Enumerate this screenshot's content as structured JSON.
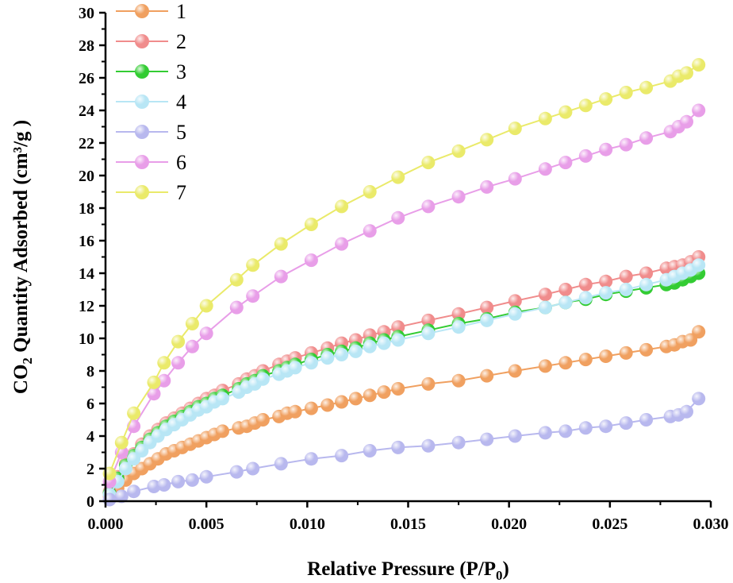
{
  "chart_data": {
    "type": "scatter",
    "title": "",
    "xlabel": "Relative Pressure (P/P",
    "xlabel_sub": "0",
    "xlabel_end": ")",
    "ylabel_pre": "CO",
    "ylabel_sub": "2",
    "ylabel_post": " Quantity Adsorbed (cm³/g )",
    "xlim": [
      0,
      0.03
    ],
    "ylim": [
      0,
      30
    ],
    "xticks": [
      0.0,
      0.005,
      0.01,
      0.015,
      0.02,
      0.025,
      0.03
    ],
    "xtick_labels": [
      "0.000",
      "0.005",
      "0.010",
      "0.015",
      "0.020",
      "0.025",
      "0.030"
    ],
    "yticks": [
      0,
      2,
      4,
      6,
      8,
      10,
      12,
      14,
      16,
      18,
      20,
      22,
      24,
      26,
      28,
      30
    ],
    "ytick_labels": [
      "0",
      "2",
      "4",
      "6",
      "8",
      "10",
      "12",
      "14",
      "16",
      "18",
      "20",
      "22",
      "24",
      "26",
      "28",
      "30"
    ],
    "legend_position": "top-left",
    "grid": false,
    "series": [
      {
        "name": "1",
        "color": "#f0a060",
        "x": [
          0.0002,
          0.0006,
          0.001,
          0.0014,
          0.0018,
          0.0022,
          0.0026,
          0.003,
          0.0034,
          0.0038,
          0.0042,
          0.0046,
          0.005,
          0.0054,
          0.0058,
          0.0066,
          0.007,
          0.0074,
          0.0078,
          0.0086,
          0.009,
          0.0094,
          0.0102,
          0.011,
          0.0117,
          0.0124,
          0.0131,
          0.0138,
          0.0145,
          0.016,
          0.0175,
          0.0189,
          0.0203,
          0.0218,
          0.0228,
          0.0238,
          0.0248,
          0.0258,
          0.0268,
          0.0278,
          0.0282,
          0.0286,
          0.029,
          0.0294
        ],
        "y": [
          0.3,
          0.8,
          1.3,
          1.7,
          2.0,
          2.3,
          2.6,
          2.9,
          3.1,
          3.3,
          3.5,
          3.7,
          3.9,
          4.1,
          4.3,
          4.5,
          4.6,
          4.8,
          5.0,
          5.2,
          5.4,
          5.5,
          5.7,
          5.9,
          6.1,
          6.3,
          6.5,
          6.7,
          6.9,
          7.2,
          7.4,
          7.7,
          8.0,
          8.3,
          8.5,
          8.7,
          8.9,
          9.1,
          9.3,
          9.5,
          9.6,
          9.8,
          9.9,
          10.4
        ]
      },
      {
        "name": "2",
        "color": "#f08c8c",
        "x": [
          0.0002,
          0.0006,
          0.001,
          0.0014,
          0.0018,
          0.0022,
          0.0026,
          0.003,
          0.0034,
          0.0038,
          0.0042,
          0.0046,
          0.005,
          0.0054,
          0.0058,
          0.0066,
          0.007,
          0.0074,
          0.0078,
          0.0086,
          0.009,
          0.0094,
          0.0102,
          0.011,
          0.0117,
          0.0124,
          0.0131,
          0.0138,
          0.0145,
          0.016,
          0.0175,
          0.0189,
          0.0203,
          0.0218,
          0.0228,
          0.0238,
          0.0248,
          0.0258,
          0.0268,
          0.0278,
          0.0282,
          0.0286,
          0.029,
          0.0294
        ],
        "y": [
          0.6,
          1.5,
          2.3,
          2.9,
          3.5,
          4.0,
          4.4,
          4.8,
          5.1,
          5.4,
          5.7,
          6.0,
          6.3,
          6.5,
          6.8,
          7.2,
          7.5,
          7.7,
          8.0,
          8.4,
          8.6,
          8.8,
          9.1,
          9.4,
          9.7,
          9.9,
          10.2,
          10.4,
          10.7,
          11.1,
          11.5,
          11.9,
          12.3,
          12.7,
          13.0,
          13.3,
          13.5,
          13.8,
          14.0,
          14.3,
          14.4,
          14.5,
          14.7,
          15.0
        ]
      },
      {
        "name": "3",
        "color": "#33cc33",
        "x": [
          0.0002,
          0.0006,
          0.001,
          0.0014,
          0.0018,
          0.0022,
          0.0026,
          0.003,
          0.0034,
          0.0038,
          0.0042,
          0.0046,
          0.005,
          0.0054,
          0.0058,
          0.0066,
          0.007,
          0.0074,
          0.0078,
          0.0086,
          0.009,
          0.0094,
          0.0102,
          0.011,
          0.0117,
          0.0124,
          0.0131,
          0.0138,
          0.0145,
          0.016,
          0.0175,
          0.0189,
          0.0203,
          0.0218,
          0.0228,
          0.0238,
          0.0248,
          0.0258,
          0.0268,
          0.0278,
          0.0282,
          0.0286,
          0.029,
          0.0294
        ],
        "y": [
          0.5,
          1.4,
          2.2,
          2.8,
          3.3,
          3.8,
          4.2,
          4.6,
          4.9,
          5.2,
          5.5,
          5.8,
          6.0,
          6.3,
          6.5,
          6.9,
          7.2,
          7.4,
          7.7,
          8.0,
          8.2,
          8.4,
          8.7,
          9.0,
          9.2,
          9.4,
          9.7,
          9.9,
          10.1,
          10.5,
          10.9,
          11.2,
          11.6,
          11.9,
          12.2,
          12.4,
          12.7,
          12.9,
          13.1,
          13.3,
          13.4,
          13.6,
          13.8,
          14.0
        ]
      },
      {
        "name": "4",
        "color": "#b8e6f5",
        "x": [
          0.0002,
          0.0006,
          0.001,
          0.0014,
          0.0018,
          0.0022,
          0.0026,
          0.003,
          0.0034,
          0.0038,
          0.0042,
          0.0046,
          0.005,
          0.0054,
          0.0058,
          0.0066,
          0.007,
          0.0074,
          0.0078,
          0.0086,
          0.009,
          0.0094,
          0.0102,
          0.011,
          0.0117,
          0.0124,
          0.0131,
          0.0138,
          0.0145,
          0.016,
          0.0175,
          0.0189,
          0.0203,
          0.0218,
          0.0228,
          0.0238,
          0.0248,
          0.0258,
          0.0268,
          0.0278,
          0.0282,
          0.0286,
          0.029,
          0.0294
        ],
        "y": [
          0.4,
          1.2,
          2.0,
          2.6,
          3.1,
          3.6,
          4.0,
          4.4,
          4.7,
          5.0,
          5.3,
          5.6,
          5.8,
          6.1,
          6.3,
          6.7,
          7.0,
          7.2,
          7.5,
          7.8,
          8.0,
          8.2,
          8.5,
          8.8,
          9.0,
          9.2,
          9.5,
          9.7,
          9.9,
          10.3,
          10.7,
          11.1,
          11.5,
          11.9,
          12.2,
          12.5,
          12.8,
          13.0,
          13.3,
          13.6,
          13.8,
          14.0,
          14.2,
          14.5
        ]
      },
      {
        "name": "5",
        "color": "#b8b8ee",
        "x": [
          0.0002,
          0.0008,
          0.0014,
          0.0024,
          0.0029,
          0.0036,
          0.0043,
          0.005,
          0.0065,
          0.0073,
          0.0087,
          0.0102,
          0.0117,
          0.0131,
          0.0145,
          0.016,
          0.0175,
          0.0189,
          0.0203,
          0.0218,
          0.0228,
          0.0238,
          0.0248,
          0.0258,
          0.0268,
          0.028,
          0.0284,
          0.0288,
          0.0294
        ],
        "y": [
          0.1,
          0.3,
          0.6,
          0.9,
          1.0,
          1.2,
          1.3,
          1.5,
          1.8,
          2.0,
          2.3,
          2.6,
          2.8,
          3.1,
          3.3,
          3.4,
          3.6,
          3.8,
          4.0,
          4.2,
          4.3,
          4.5,
          4.6,
          4.8,
          5.0,
          5.2,
          5.3,
          5.5,
          6.3
        ]
      },
      {
        "name": "6",
        "color": "#e89ee8",
        "x": [
          0.0002,
          0.0008,
          0.0014,
          0.0024,
          0.0029,
          0.0036,
          0.0043,
          0.005,
          0.0065,
          0.0073,
          0.0087,
          0.0102,
          0.0117,
          0.0131,
          0.0145,
          0.016,
          0.0175,
          0.0189,
          0.0203,
          0.0218,
          0.0228,
          0.0238,
          0.0248,
          0.0258,
          0.0268,
          0.028,
          0.0284,
          0.0288,
          0.0294
        ],
        "y": [
          1.2,
          3.0,
          4.6,
          6.6,
          7.4,
          8.5,
          9.5,
          10.3,
          11.9,
          12.6,
          13.8,
          14.8,
          15.8,
          16.6,
          17.4,
          18.1,
          18.7,
          19.3,
          19.8,
          20.4,
          20.8,
          21.2,
          21.6,
          21.9,
          22.3,
          22.7,
          23.0,
          23.3,
          24.0
        ]
      },
      {
        "name": "7",
        "color": "#eaea6a",
        "x": [
          0.0002,
          0.0008,
          0.0014,
          0.0024,
          0.0029,
          0.0036,
          0.0043,
          0.005,
          0.0065,
          0.0073,
          0.0087,
          0.0102,
          0.0117,
          0.0131,
          0.0145,
          0.016,
          0.0175,
          0.0189,
          0.0203,
          0.0218,
          0.0228,
          0.0238,
          0.0248,
          0.0258,
          0.0268,
          0.028,
          0.0284,
          0.0288,
          0.0294
        ],
        "y": [
          1.7,
          3.6,
          5.4,
          7.3,
          8.5,
          9.8,
          10.9,
          12.0,
          13.6,
          14.5,
          15.8,
          17.0,
          18.1,
          19.0,
          19.9,
          20.8,
          21.5,
          22.2,
          22.9,
          23.5,
          23.9,
          24.3,
          24.7,
          25.1,
          25.4,
          25.8,
          26.1,
          26.3,
          26.8
        ]
      }
    ]
  }
}
